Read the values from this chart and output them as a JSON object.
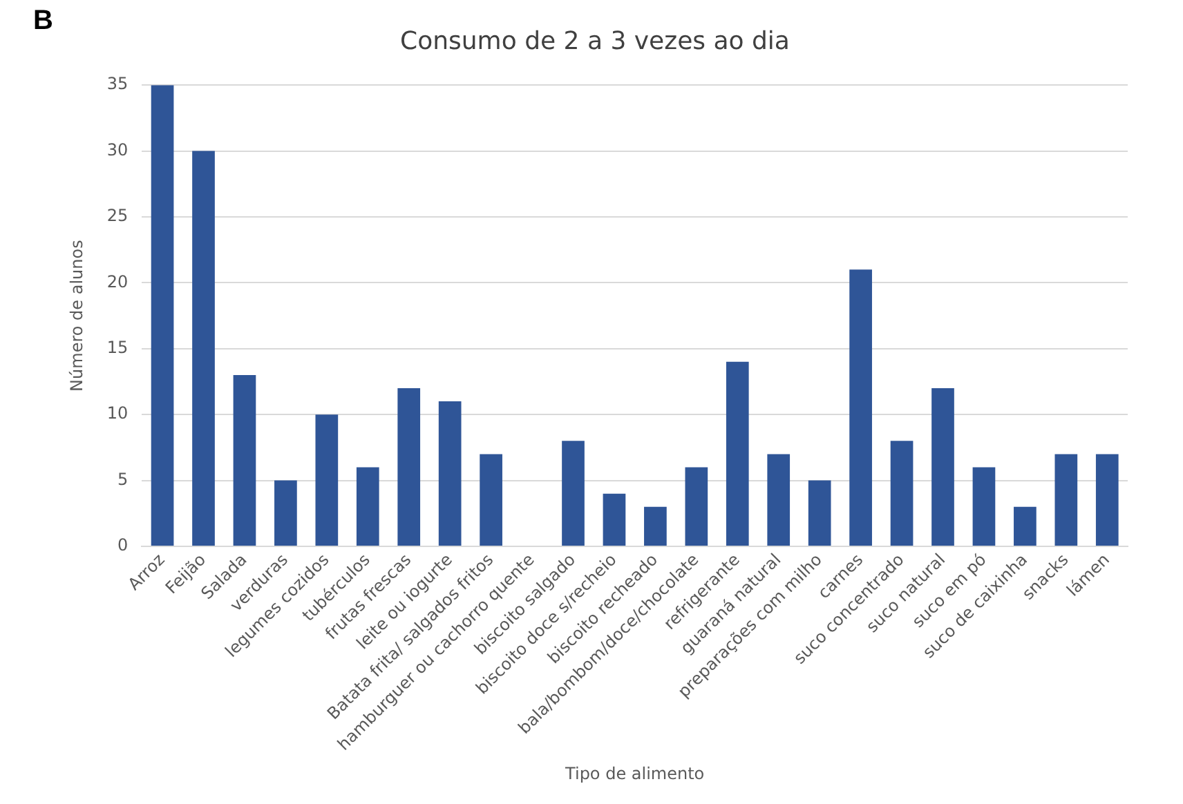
{
  "chart_data": {
    "type": "bar",
    "title": "Consumo de 2 a 3 vezes ao dia",
    "xlabel": "Tipo de alimento",
    "ylabel": "Número de alunos",
    "annotations": [
      "B"
    ],
    "categories": [
      "Arroz",
      "Feijão",
      "Salada",
      "verduras",
      "legumes cozidos",
      "tubérculos",
      "frutas frescas",
      "leite ou iogurte",
      "Batata frita/ salgados fritos",
      "hamburguer ou cachorro quente",
      "biscoito salgado",
      "biscoito doce s/recheio",
      "biscoito recheado",
      "bala/bombom/doce/chocolate",
      "refrigerante",
      "guaraná natural",
      "preparações com milho",
      "carnes",
      "suco concentrado",
      "suco natural",
      "suco em pó",
      "suco de caixinha",
      "snacks",
      "lámen"
    ],
    "values": [
      35,
      30,
      13,
      5,
      10,
      6,
      12,
      11,
      7,
      0,
      8,
      4,
      3,
      6,
      14,
      7,
      5,
      21,
      8,
      12,
      6,
      3,
      7,
      7
    ],
    "color": "#2f5597",
    "ylim": [
      0,
      35
    ],
    "yticks": [
      0,
      5,
      10,
      15,
      20,
      25,
      30,
      35
    ],
    "grid": "y",
    "legend": false
  }
}
